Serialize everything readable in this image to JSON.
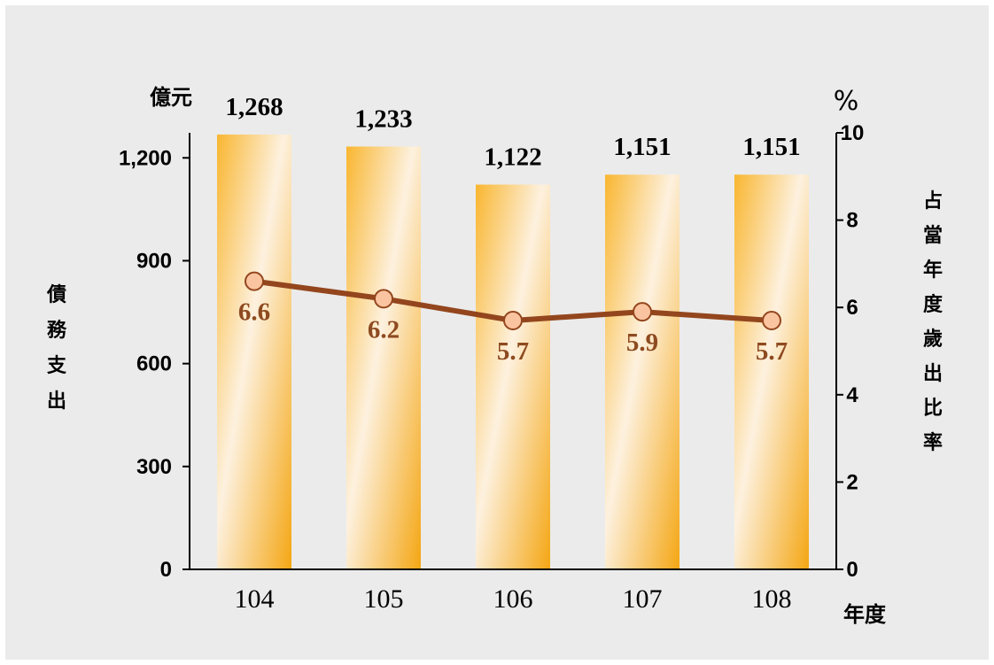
{
  "chart_data": {
    "type": "bar+line",
    "categories": [
      "104",
      "105",
      "106",
      "107",
      "108"
    ],
    "bar_series": {
      "name": "債務支出",
      "values": [
        1268,
        1233,
        1122,
        1151,
        1151
      ],
      "labels": [
        "1,268",
        "1,233",
        "1,122",
        "1,151",
        "1,151"
      ]
    },
    "line_series": {
      "name": "占當年度歲出比率",
      "values": [
        6.6,
        6.2,
        5.7,
        5.9,
        5.7
      ],
      "labels": [
        "6.6",
        "6.2",
        "5.7",
        "5.9",
        "5.7"
      ]
    },
    "y_left": {
      "unit": "億元",
      "label": "債務支出",
      "ticks": [
        0,
        300,
        600,
        900,
        1200
      ],
      "tick_labels": [
        "0",
        "300",
        "600",
        "900",
        "1,200"
      ],
      "ylim": [
        0,
        1273
      ]
    },
    "y_right": {
      "unit": "%",
      "label": "占當年度歲出比率",
      "ticks": [
        0,
        2,
        4,
        6,
        8,
        10
      ],
      "tick_labels": [
        "0",
        "2",
        "4",
        "6",
        "8",
        "10"
      ],
      "ylim": [
        0,
        10
      ]
    },
    "xlabel": "年度",
    "grid": false,
    "colors": {
      "bar_light": "#fdf2e2",
      "bar_mid": "#fbc562",
      "bar_dark": "#f4a916",
      "line": "#93461d",
      "marker_fill": "#fbc4a0",
      "marker_stroke": "#93461d",
      "point_label": "#8e4a20"
    }
  }
}
